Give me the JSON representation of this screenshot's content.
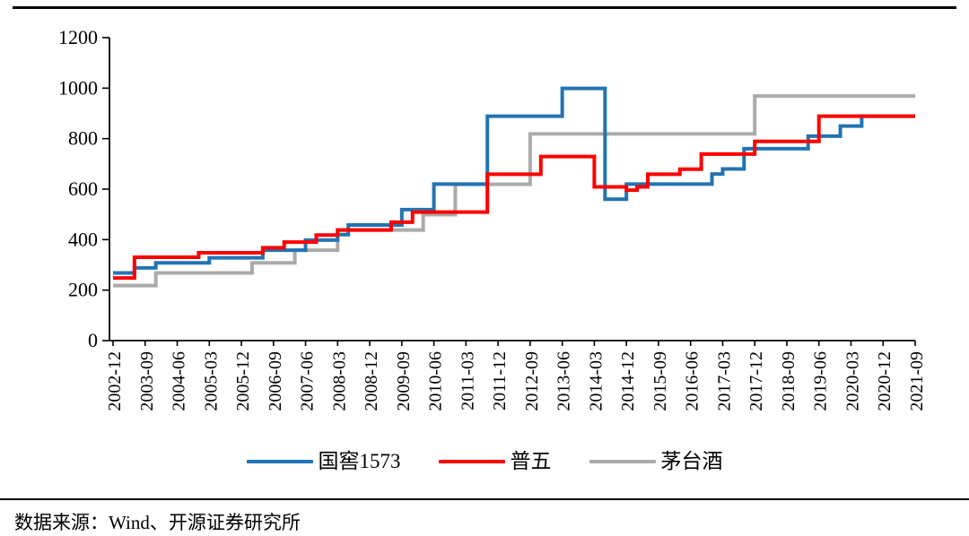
{
  "footer": {
    "source_text": "数据来源：Wind、开源证券研究所"
  },
  "legend": {
    "items": [
      {
        "label": "国窖1573",
        "color": "#2274B5"
      },
      {
        "label": "普五",
        "color": "#FE0000"
      },
      {
        "label": "茅台酒",
        "color": "#ABABAB"
      }
    ]
  },
  "chart_data": {
    "type": "line",
    "step": true,
    "title": "",
    "xlabel": "",
    "ylabel": "",
    "grid": false,
    "legend_position": "bottom",
    "x_start": "2002-12",
    "x_end": "2021-09",
    "x_freq_months": 3,
    "x_tick_every_quarters": 3,
    "x_tick_labels": [
      "2002-12",
      "2003-09",
      "2004-06",
      "2005-03",
      "2005-12",
      "2006-09",
      "2007-06",
      "2008-03",
      "2008-12",
      "2009-09",
      "2010-06",
      "2011-03",
      "2011-12",
      "2012-09",
      "2013-06",
      "2014-03",
      "2014-12",
      "2015-09",
      "2016-06",
      "2017-03",
      "2017-12",
      "2018-09",
      "2019-06",
      "2020-03",
      "2020-12",
      "2021-09"
    ],
    "ylim": [
      0,
      1200
    ],
    "y_ticks": [
      0,
      200,
      400,
      600,
      800,
      1000,
      1200
    ],
    "series": [
      {
        "name": "国窖1573",
        "color": "#2274B5",
        "breakpoints": [
          [
            "2002-12",
            268
          ],
          [
            "2003-06",
            288
          ],
          [
            "2003-12",
            308
          ],
          [
            "2005-03",
            328
          ],
          [
            "2006-06",
            358
          ],
          [
            "2007-06",
            398
          ],
          [
            "2008-03",
            420
          ],
          [
            "2008-06",
            458
          ],
          [
            "2009-09",
            519
          ],
          [
            "2010-06",
            620
          ],
          [
            "2011-09",
            889
          ],
          [
            "2013-06",
            999
          ],
          [
            "2014-06",
            560
          ],
          [
            "2014-12",
            620
          ],
          [
            "2016-12",
            660
          ],
          [
            "2017-03",
            680
          ],
          [
            "2017-09",
            760
          ],
          [
            "2019-03",
            810
          ],
          [
            "2019-12",
            850
          ],
          [
            "2020-06",
            889
          ]
        ]
      },
      {
        "name": "普五",
        "color": "#FE0000",
        "breakpoints": [
          [
            "2002-12",
            248
          ],
          [
            "2003-06",
            330
          ],
          [
            "2004-12",
            348
          ],
          [
            "2006-06",
            368
          ],
          [
            "2006-12",
            390
          ],
          [
            "2007-09",
            418
          ],
          [
            "2008-03",
            438
          ],
          [
            "2009-06",
            469
          ],
          [
            "2009-12",
            509
          ],
          [
            "2011-09",
            659
          ],
          [
            "2012-12",
            729
          ],
          [
            "2014-03",
            609
          ],
          [
            "2014-12",
            596
          ],
          [
            "2015-03",
            609
          ],
          [
            "2015-06",
            659
          ],
          [
            "2016-03",
            679
          ],
          [
            "2016-09",
            739
          ],
          [
            "2017-12",
            789
          ],
          [
            "2019-06",
            889
          ]
        ]
      },
      {
        "name": "茅台酒",
        "color": "#ABABAB",
        "breakpoints": [
          [
            "2002-12",
            218
          ],
          [
            "2003-12",
            268
          ],
          [
            "2006-03",
            308
          ],
          [
            "2007-03",
            358
          ],
          [
            "2008-03",
            438
          ],
          [
            "2010-03",
            499
          ],
          [
            "2010-12",
            619
          ],
          [
            "2012-09",
            819
          ],
          [
            "2017-12",
            969
          ]
        ]
      }
    ]
  }
}
